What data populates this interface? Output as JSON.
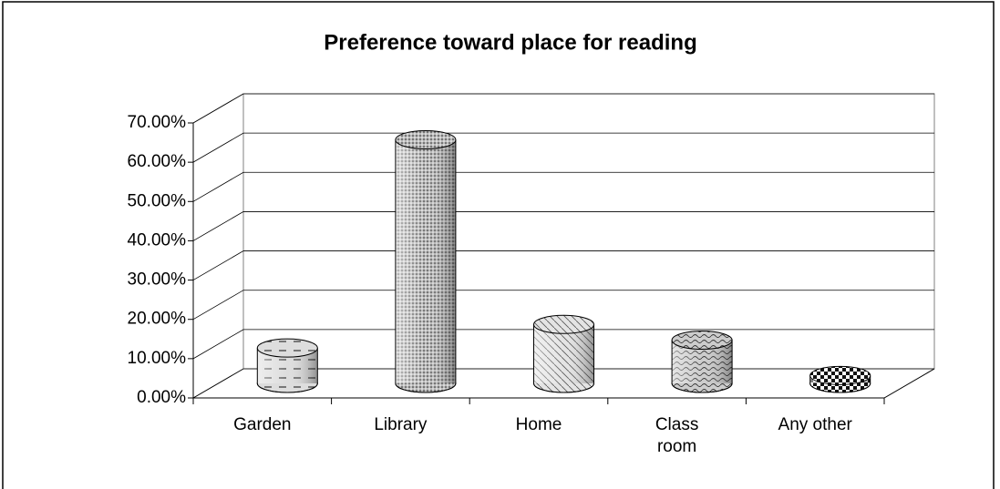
{
  "chart_data": {
    "type": "bar3d",
    "title": "Preference toward place for reading",
    "categories": [
      "Garden",
      "Library",
      "Home",
      "Class room",
      "Any other"
    ],
    "values": [
      9,
      62,
      15,
      11,
      2
    ],
    "ylim": [
      0,
      70
    ],
    "yticks": [
      {
        "value": 0,
        "label": "0.00%"
      },
      {
        "value": 10,
        "label": "10.00%"
      },
      {
        "value": 20,
        "label": "20.00%"
      },
      {
        "value": 30,
        "label": "30.00%"
      },
      {
        "value": 40,
        "label": "40.00%"
      },
      {
        "value": 50,
        "label": "50.00%"
      },
      {
        "value": 60,
        "label": "60.00%"
      },
      {
        "value": 70,
        "label": "70.00%"
      }
    ],
    "grid": true
  }
}
